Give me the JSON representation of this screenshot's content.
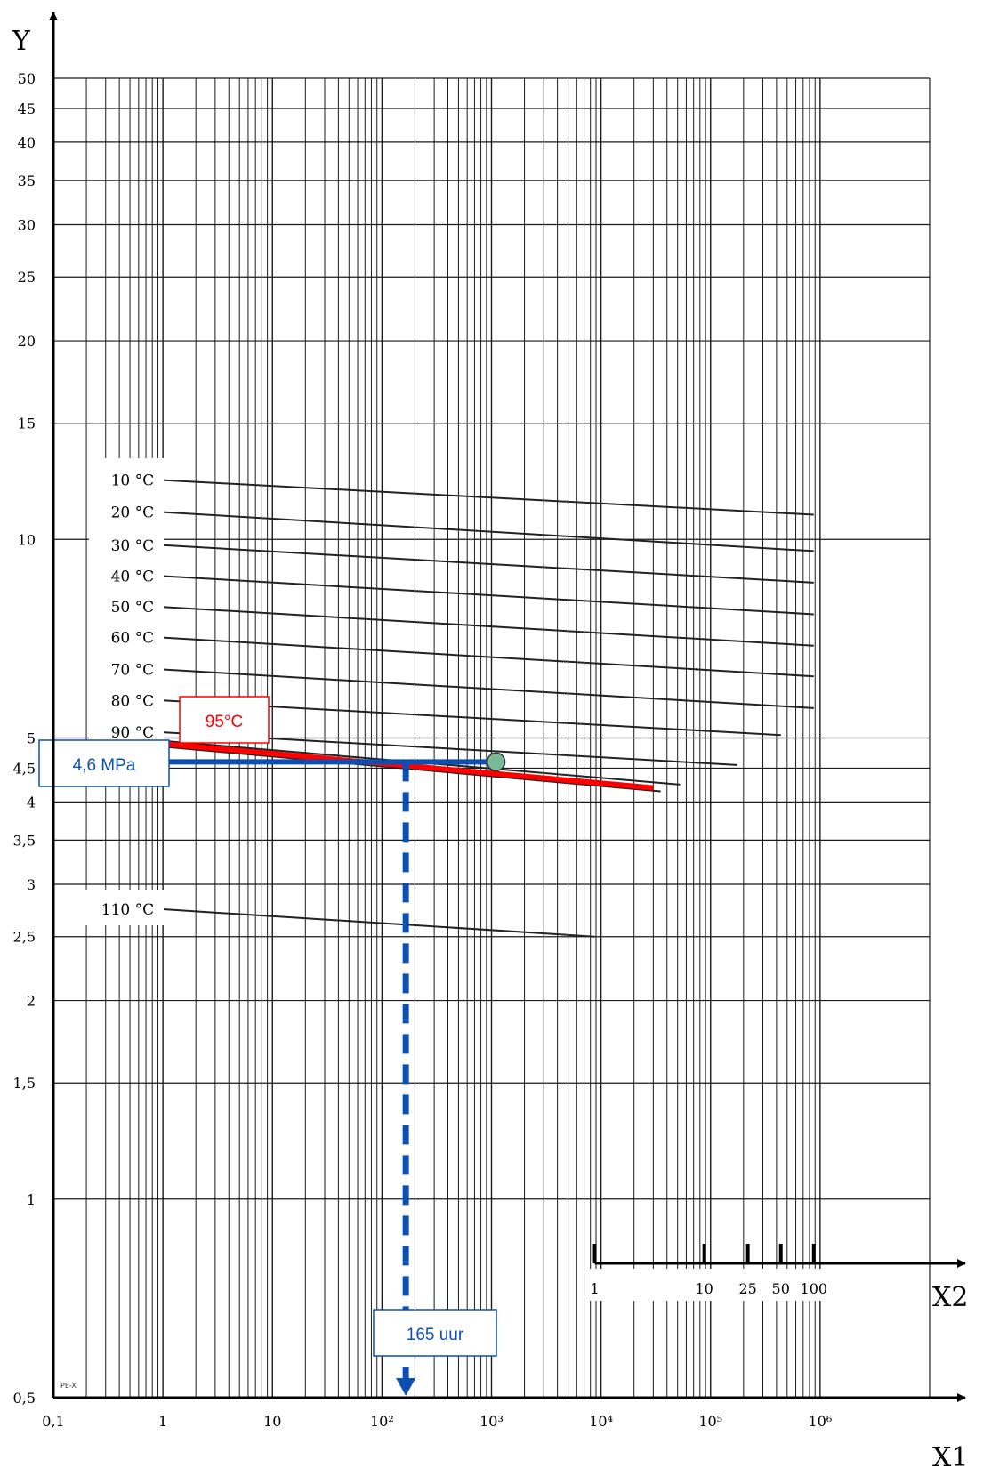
{
  "chart_data": {
    "type": "line",
    "title": "",
    "xlabel": "X1",
    "x2label": "X2",
    "ylabel": "Y",
    "scale": "log-log",
    "xlim": [
      0.1,
      10000000
    ],
    "ylim": [
      0.5,
      50
    ],
    "x_ticks": [
      {
        "value": 0.1,
        "label": "0,1"
      },
      {
        "value": 1,
        "label": "1"
      },
      {
        "value": 10,
        "label": "10"
      },
      {
        "value": 100,
        "label": "10²"
      },
      {
        "value": 1000,
        "label": "10³"
      },
      {
        "value": 10000,
        "label": "10⁴"
      },
      {
        "value": 100000,
        "label": "10⁵"
      },
      {
        "value": 1000000,
        "label": "10⁶"
      }
    ],
    "y_ticks": [
      {
        "value": 50,
        "label": "50"
      },
      {
        "value": 45,
        "label": "45"
      },
      {
        "value": 40,
        "label": "40"
      },
      {
        "value": 35,
        "label": "35"
      },
      {
        "value": 30,
        "label": "30"
      },
      {
        "value": 25,
        "label": "25"
      },
      {
        "value": 20,
        "label": "20"
      },
      {
        "value": 15,
        "label": "15"
      },
      {
        "value": 10,
        "label": "10"
      },
      {
        "value": 5,
        "label": "5"
      },
      {
        "value": 4.5,
        "label": "4,5"
      },
      {
        "value": 4,
        "label": "4"
      },
      {
        "value": 3.5,
        "label": "3,5"
      },
      {
        "value": 3,
        "label": "3"
      },
      {
        "value": 2.5,
        "label": "2,5"
      },
      {
        "value": 2,
        "label": "2"
      },
      {
        "value": 1.5,
        "label": "1,5"
      },
      {
        "value": 1,
        "label": "1"
      },
      {
        "value": 0.5,
        "label": "0,5"
      }
    ],
    "x2_ticks": [
      {
        "years": 1,
        "label": "1"
      },
      {
        "years": 10,
        "label": "10"
      },
      {
        "years": 25,
        "label": "25"
      },
      {
        "years": 50,
        "label": "50"
      },
      {
        "years": 100,
        "label": "100"
      }
    ],
    "grid": true,
    "corner_mark": "PE-X",
    "series": [
      {
        "name": "10 °C",
        "x": [
          1,
          876000
        ],
        "y": [
          12.3,
          10.9
        ]
      },
      {
        "name": "20 °C",
        "x": [
          1,
          876000
        ],
        "y": [
          11.0,
          9.6
        ]
      },
      {
        "name": "30 °C",
        "x": [
          1,
          876000
        ],
        "y": [
          9.8,
          8.6
        ]
      },
      {
        "name": "40 °C",
        "x": [
          1,
          876000
        ],
        "y": [
          8.8,
          7.7
        ]
      },
      {
        "name": "50 °C",
        "x": [
          1,
          876000
        ],
        "y": [
          7.9,
          6.9
        ]
      },
      {
        "name": "60 °C",
        "x": [
          1,
          876000
        ],
        "y": [
          7.1,
          6.2
        ]
      },
      {
        "name": "70 °C",
        "x": [
          1,
          876000
        ],
        "y": [
          6.35,
          5.55
        ]
      },
      {
        "name": "80 °C",
        "x": [
          1,
          438000
        ],
        "y": [
          5.7,
          5.05
        ]
      },
      {
        "name": "90 °C",
        "x": [
          1,
          175000
        ],
        "y": [
          5.1,
          4.55
        ]
      },
      {
        "name": "",
        "x": [
          1,
          52560
        ],
        "y": [
          4.95,
          4.25
        ]
      },
      {
        "name": "",
        "x": [
          1,
          35040
        ],
        "y": [
          4.85,
          4.15
        ]
      },
      {
        "name": "110 °C",
        "x": [
          1,
          8760
        ],
        "y": [
          2.75,
          2.5
        ]
      }
    ],
    "highlight": {
      "temperature_label": "95°C",
      "temperature_line": {
        "x": [
          1,
          30000
        ],
        "y": [
          4.9,
          4.2
        ]
      },
      "stress_label": "4,6 MPa",
      "stress_value": 4.6,
      "point_x": 1100,
      "time_label": "165 uur",
      "time_value": 165
    },
    "colors": {
      "grid": "#1a1a1a",
      "curves": "#222222",
      "highlight_red": "#ff0000",
      "highlight_blue": "#0b4fb5",
      "point_fill": "#7ab89a"
    }
  }
}
